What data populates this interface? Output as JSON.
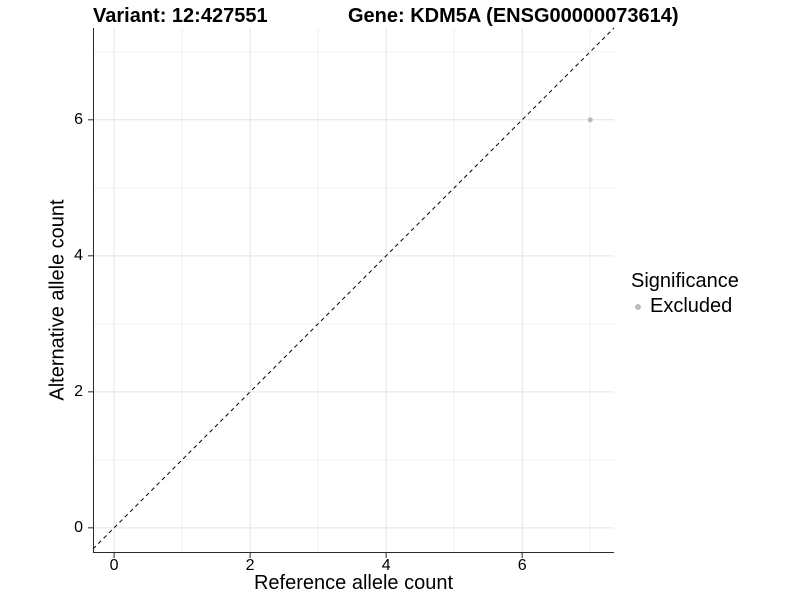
{
  "chart_data": {
    "type": "scatter",
    "title_left": "Variant: 12:427551",
    "title_right": "Gene: KDM5A (ENSG00000073614)",
    "xlabel": "Reference allele count",
    "ylabel": "Alternative allele count",
    "xlim": [
      -0.31,
      7.35
    ],
    "ylim": [
      -0.37,
      7.35
    ],
    "x_major_ticks": [
      0,
      2,
      4,
      6
    ],
    "y_major_ticks": [
      0,
      2,
      4,
      6
    ],
    "x_minor_ticks": [
      1,
      3,
      5,
      7
    ],
    "y_minor_ticks": [
      1,
      3,
      5,
      7
    ],
    "grid": true,
    "equal_aspect": true,
    "reference_line": {
      "type": "identity",
      "equation": "y = x",
      "style": "dashed",
      "color": "#000000"
    },
    "series": [
      {
        "name": "Excluded",
        "color": "#bdbdbd",
        "points": [
          [
            7,
            6
          ]
        ]
      }
    ],
    "legend": {
      "title": "Significance",
      "position": "right",
      "items": [
        {
          "label": "Excluded",
          "color": "#bdbdbd"
        }
      ]
    },
    "colors": {
      "background": "#ffffff",
      "axis_line": "#2a2a2a",
      "grid_major": "#e4e4e4",
      "grid_minor": "#f1f1f1",
      "text": "#000000"
    }
  }
}
